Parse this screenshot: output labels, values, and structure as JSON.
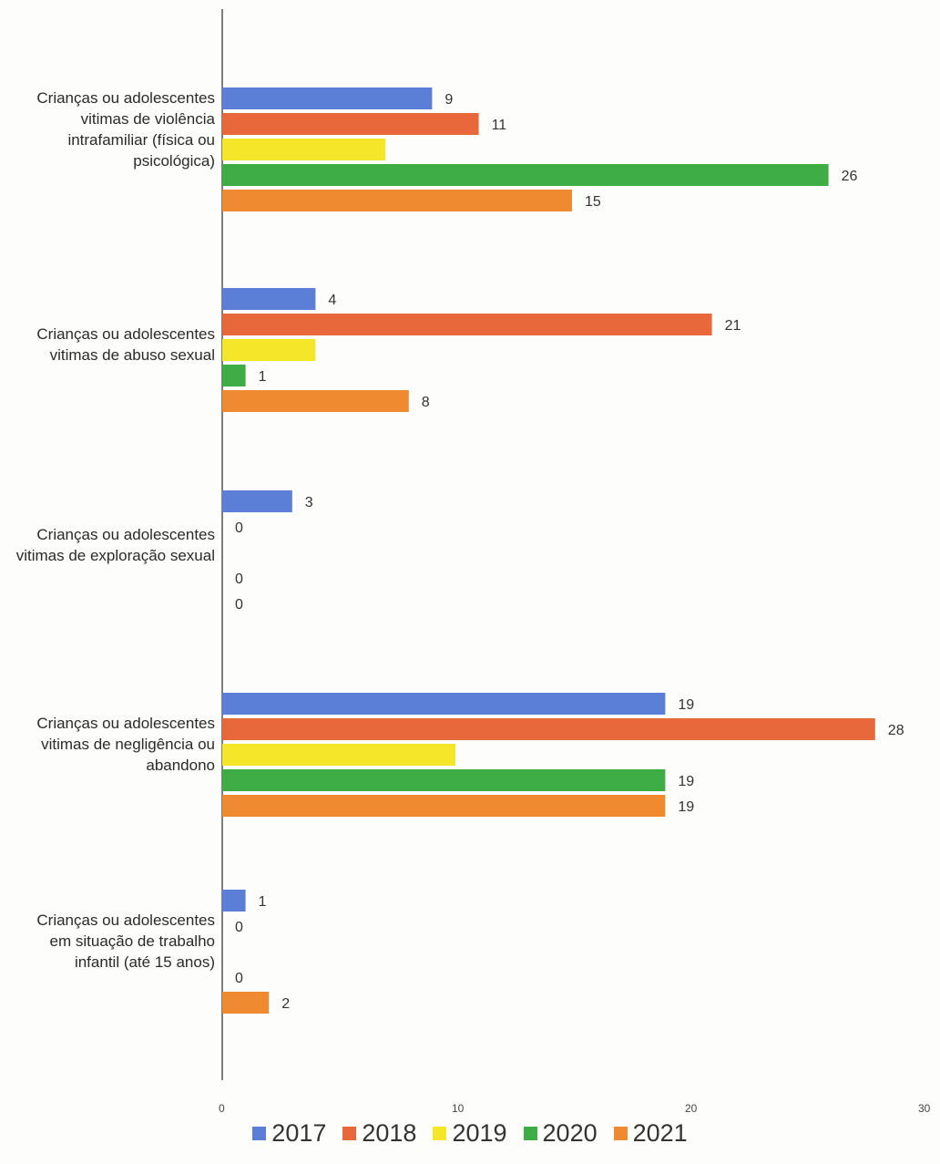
{
  "chart_data": {
    "type": "bar",
    "orientation": "horizontal",
    "categories": [
      "Crianças ou adolescentes vitimas de violência intrafamiliar (física ou psicológica)",
      "Crianças ou adolescentes vitimas de abuso sexual",
      "Crianças ou adolescentes vitimas de exploração sexual",
      "Crianças ou adolescentes vitimas de negligência ou abandono",
      "Crianças ou adolescentes em situação de trabalho infantil (até 15 anos)"
    ],
    "category_lines": [
      [
        "Crianças ou adolescentes",
        "vitimas de violência",
        "intrafamiliar (física ou",
        "psicológica)"
      ],
      [
        "Crianças ou adolescentes",
        "vitimas de abuso sexual"
      ],
      [
        "Crianças ou adolescentes",
        "vitimas de exploração sexual"
      ],
      [
        "Crianças ou adolescentes",
        "vitimas de negligência ou",
        "abandono"
      ],
      [
        "Crianças ou adolescentes",
        "em situação de trabalho",
        "infantil (até 15 anos)"
      ]
    ],
    "series": [
      {
        "name": "2017",
        "color": "#5b7fd6",
        "values": [
          9,
          4,
          3,
          19,
          1
        ]
      },
      {
        "name": "2018",
        "color": "#e8683b",
        "values": [
          11,
          21,
          0,
          28,
          0
        ]
      },
      {
        "name": "2019",
        "color": "#f5e62a",
        "values": [
          7,
          4,
          0,
          10,
          0
        ]
      },
      {
        "name": "2020",
        "color": "#3fad46",
        "values": [
          26,
          1,
          0,
          19,
          0
        ]
      },
      {
        "name": "2021",
        "color": "#f08a30",
        "values": [
          15,
          8,
          0,
          19,
          2
        ]
      }
    ],
    "data_labels": [
      [
        "9",
        "11",
        "",
        "26",
        "15"
      ],
      [
        "4",
        "21",
        "",
        "1",
        "8"
      ],
      [
        "3",
        "0",
        "",
        "0",
        "0"
      ],
      [
        "19",
        "28",
        "",
        "19",
        "19"
      ],
      [
        "1",
        "0",
        "",
        "0",
        "2"
      ]
    ],
    "xlim": [
      0,
      30
    ],
    "x_ticks": [
      0,
      10,
      20,
      30
    ],
    "legend_position": "bottom",
    "grid": false
  }
}
